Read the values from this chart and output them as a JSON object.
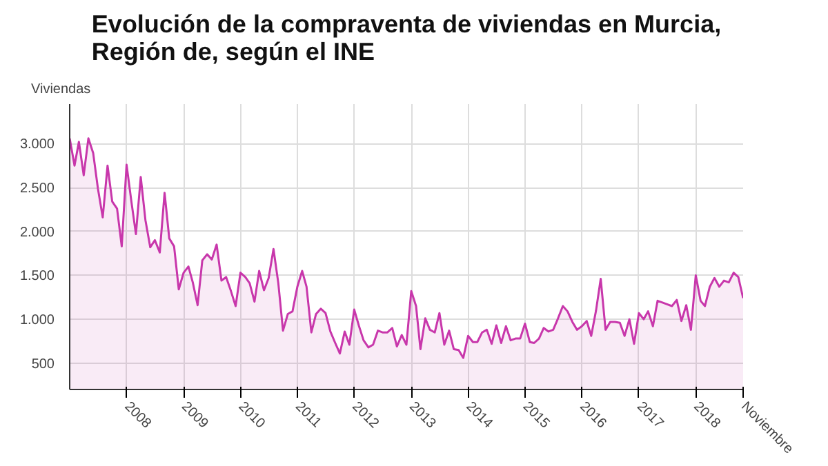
{
  "chart_data": {
    "type": "area",
    "title": "Evolución de la compraventa de viviendas en Murcia,\nRegión de, según el INE",
    "ylabel": "Viviendas",
    "x": [
      "2007-01",
      "2007-02",
      "2007-03",
      "2007-04",
      "2007-05",
      "2007-06",
      "2007-07",
      "2007-08",
      "2007-09",
      "2007-10",
      "2007-11",
      "2007-12",
      "2008-01",
      "2008-02",
      "2008-03",
      "2008-04",
      "2008-05",
      "2008-06",
      "2008-07",
      "2008-08",
      "2008-09",
      "2008-10",
      "2008-11",
      "2008-12",
      "2009-01",
      "2009-02",
      "2009-03",
      "2009-04",
      "2009-05",
      "2009-06",
      "2009-07",
      "2009-08",
      "2009-09",
      "2009-10",
      "2009-11",
      "2009-12",
      "2010-01",
      "2010-02",
      "2010-03",
      "2010-04",
      "2010-05",
      "2010-06",
      "2010-07",
      "2010-08",
      "2010-09",
      "2010-10",
      "2010-11",
      "2010-12",
      "2011-01",
      "2011-02",
      "2011-03",
      "2011-04",
      "2011-05",
      "2011-06",
      "2011-07",
      "2011-08",
      "2011-09",
      "2011-10",
      "2011-11",
      "2011-12",
      "2012-01",
      "2012-02",
      "2012-03",
      "2012-04",
      "2012-05",
      "2012-06",
      "2012-07",
      "2012-08",
      "2012-09",
      "2012-10",
      "2012-11",
      "2012-12",
      "2013-01",
      "2013-02",
      "2013-03",
      "2013-04",
      "2013-05",
      "2013-06",
      "2013-07",
      "2013-08",
      "2013-09",
      "2013-10",
      "2013-11",
      "2013-12",
      "2014-01",
      "2014-02",
      "2014-03",
      "2014-04",
      "2014-05",
      "2014-06",
      "2014-07",
      "2014-08",
      "2014-09",
      "2014-10",
      "2014-11",
      "2014-12",
      "2015-01",
      "2015-02",
      "2015-03",
      "2015-04",
      "2015-05",
      "2015-06",
      "2015-07",
      "2015-08",
      "2015-09",
      "2015-10",
      "2015-11",
      "2015-12",
      "2016-01",
      "2016-02",
      "2016-03",
      "2016-04",
      "2016-05",
      "2016-06",
      "2016-07",
      "2016-08",
      "2016-09",
      "2016-10",
      "2016-11",
      "2016-12",
      "2017-01",
      "2017-02",
      "2017-03",
      "2017-04",
      "2017-05",
      "2017-06",
      "2017-07",
      "2017-08",
      "2017-09",
      "2017-10",
      "2017-11",
      "2017-12",
      "2018-01",
      "2018-02",
      "2018-03",
      "2018-04",
      "2018-05",
      "2018-06",
      "2018-07",
      "2018-08",
      "2018-09",
      "2018-10",
      "2018-11"
    ],
    "series": [
      {
        "color": "#c837ab",
        "values": [
          3060,
          2750,
          3020,
          2640,
          3060,
          2890,
          2490,
          2160,
          2750,
          2340,
          2260,
          1830,
          2760,
          2340,
          1970,
          2620,
          2130,
          1820,
          1900,
          1760,
          2440,
          1920,
          1830,
          1340,
          1530,
          1600,
          1420,
          1160,
          1670,
          1740,
          1680,
          1850,
          1440,
          1480,
          1320,
          1150,
          1530,
          1480,
          1410,
          1200,
          1550,
          1330,
          1470,
          1800,
          1410,
          870,
          1060,
          1090,
          1370,
          1550,
          1370,
          850,
          1060,
          1120,
          1070,
          860,
          730,
          610,
          860,
          710,
          1110,
          920,
          760,
          680,
          710,
          870,
          850,
          850,
          900,
          690,
          820,
          710,
          1320,
          1150,
          660,
          1010,
          880,
          850,
          1070,
          710,
          870,
          660,
          650,
          560,
          810,
          740,
          740,
          850,
          880,
          720,
          930,
          730,
          920,
          760,
          780,
          780,
          950,
          740,
          730,
          780,
          900,
          860,
          880,
          1010,
          1150,
          1090,
          970,
          880,
          920,
          980,
          810,
          1100,
          1460,
          880,
          970,
          970,
          960,
          810,
          1000,
          720,
          1070,
          1000,
          1090,
          920,
          1210,
          1190,
          1170,
          1150,
          1220,
          980,
          1160,
          880,
          1500,
          1210,
          1150,
          1370,
          1470,
          1370,
          1440,
          1420,
          1530,
          1480,
          1240
        ]
      }
    ],
    "xlim": [
      "2007-01",
      "2018-11"
    ],
    "xticks": [
      "2008",
      "2009",
      "2010",
      "2011",
      "2012",
      "2013",
      "2014",
      "2015",
      "2016",
      "2017",
      "2018",
      {
        "value": "2018-11",
        "label": "Noviembre"
      }
    ],
    "ylim": [
      200,
      3450
    ],
    "yticks": [
      500,
      {
        "value": 1000,
        "label": "1.000"
      },
      {
        "value": 1500,
        "label": "1.500"
      },
      {
        "value": 2000,
        "label": "2.000"
      },
      {
        "value": 2500,
        "label": "2.500"
      },
      {
        "value": 3000,
        "label": "3.000"
      }
    ],
    "grid": true
  }
}
